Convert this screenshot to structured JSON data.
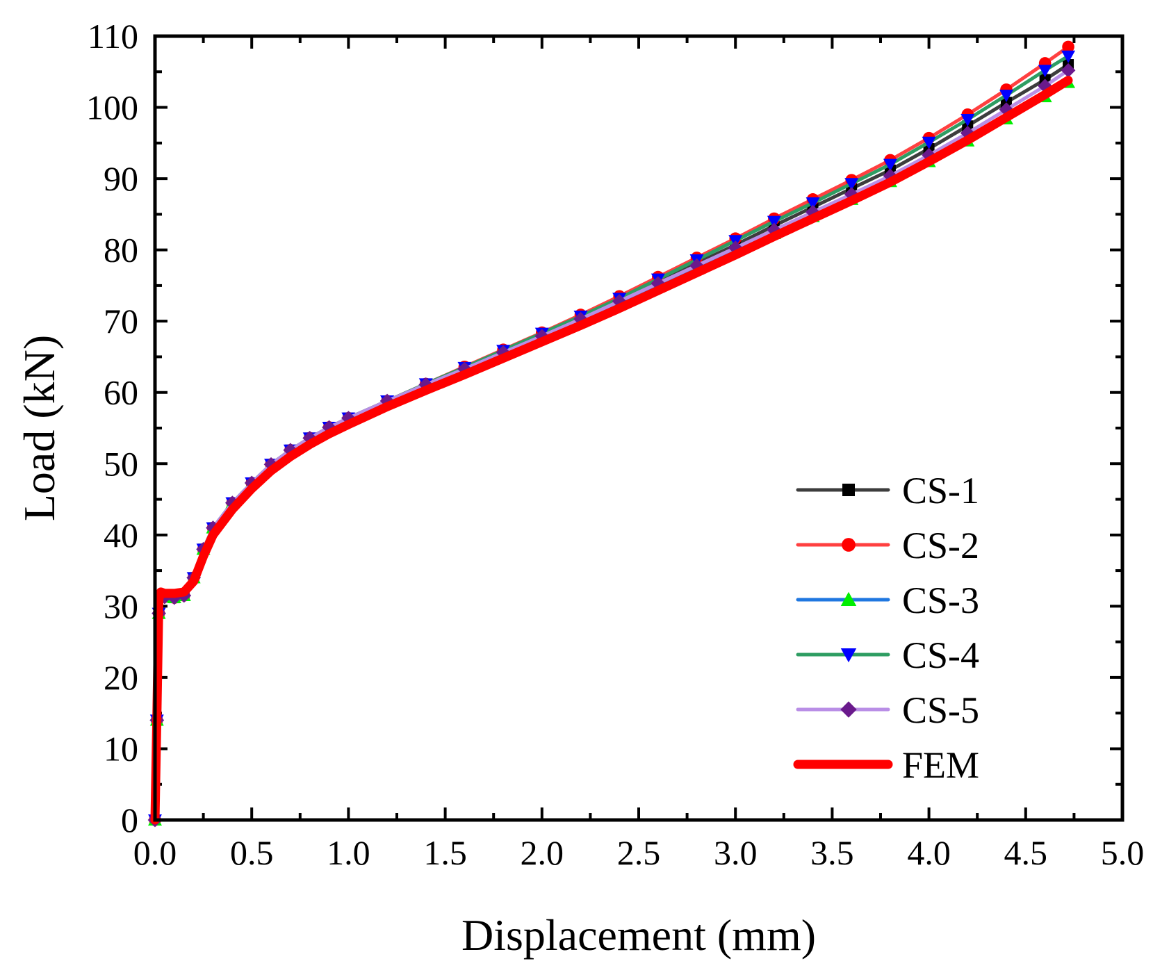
{
  "chart_data": {
    "type": "line",
    "title": "",
    "xlabel": "Displacement (mm)",
    "ylabel": "Load (kN)",
    "xlim": [
      0,
      5
    ],
    "ylim": [
      0,
      110
    ],
    "xticks": [
      0,
      0.5,
      1,
      1.5,
      2,
      2.5,
      3,
      3.5,
      4,
      4.5,
      5
    ],
    "xtick_labels": [
      "0.0",
      "0.5",
      "1.0",
      "1.5",
      "2.0",
      "2.5",
      "3.0",
      "3.5",
      "4.0",
      "4.5",
      "5.0"
    ],
    "yticks": [
      0,
      10,
      20,
      30,
      40,
      50,
      60,
      70,
      80,
      90,
      100,
      110
    ],
    "ytick_labels": [
      "0",
      "10",
      "20",
      "30",
      "40",
      "50",
      "60",
      "70",
      "80",
      "90",
      "100",
      "110"
    ],
    "grid": false,
    "legend_position": "bottom-right",
    "series": [
      {
        "name": "CS-1",
        "color": "#3d3d3d",
        "marker_color": "#000000",
        "marker": "square",
        "line_width": 5,
        "x": [
          0,
          0.01,
          0.02,
          0.03,
          0.05,
          0.1,
          0.15,
          0.2,
          0.25,
          0.3,
          0.4,
          0.5,
          0.6,
          0.7,
          0.8,
          0.9,
          1.0,
          1.2,
          1.4,
          1.6,
          1.8,
          2.0,
          2.2,
          2.4,
          2.6,
          2.8,
          3.0,
          3.2,
          3.4,
          3.6,
          3.8,
          4.0,
          4.2,
          4.4,
          4.6,
          4.72
        ],
        "y": [
          0,
          14,
          29,
          31.5,
          31.3,
          31.2,
          31.5,
          34,
          38,
          41,
          44.5,
          47.3,
          49.9,
          51.9,
          53.6,
          55.1,
          56.4,
          58.8,
          61.1,
          63.4,
          65.7,
          68,
          70.4,
          72.9,
          75.5,
          78.1,
          80.7,
          83.4,
          86,
          88.6,
          91.2,
          94.2,
          97.4,
          100.7,
          103.9,
          106
        ]
      },
      {
        "name": "CS-2",
        "color": "#ff4040",
        "marker_color": "#ff0000",
        "marker": "circle",
        "line_width": 5,
        "x": [
          0,
          0.01,
          0.02,
          0.03,
          0.05,
          0.1,
          0.15,
          0.2,
          0.25,
          0.3,
          0.4,
          0.5,
          0.6,
          0.7,
          0.8,
          0.9,
          1.0,
          1.2,
          1.4,
          1.6,
          1.8,
          2.0,
          2.2,
          2.4,
          2.6,
          2.8,
          3.0,
          3.2,
          3.4,
          3.6,
          3.8,
          4.0,
          4.2,
          4.4,
          4.6,
          4.72
        ],
        "y": [
          0,
          14,
          29,
          31.5,
          31.3,
          31.2,
          31.5,
          34,
          38,
          41,
          44.5,
          47.3,
          49.9,
          51.9,
          53.6,
          55.1,
          56.4,
          58.8,
          61.2,
          63.6,
          66,
          68.4,
          70.9,
          73.5,
          76.2,
          78.9,
          81.6,
          84.4,
          87.1,
          89.8,
          92.6,
          95.7,
          99,
          102.5,
          106.2,
          108.5
        ]
      },
      {
        "name": "CS-3",
        "color": "#1f77e0",
        "marker_color": "#00ee00",
        "marker": "triangle-up",
        "line_width": 5,
        "x": [
          0,
          0.01,
          0.02,
          0.03,
          0.05,
          0.1,
          0.15,
          0.2,
          0.25,
          0.3,
          0.4,
          0.5,
          0.6,
          0.7,
          0.8,
          0.9,
          1.0,
          1.2,
          1.4,
          1.6,
          1.8,
          2.0,
          2.2,
          2.4,
          2.6,
          2.8,
          3.0,
          3.2,
          3.4,
          3.6,
          3.8,
          4.0,
          4.2,
          4.4,
          4.6,
          4.72
        ],
        "y": [
          0,
          14,
          29,
          31.5,
          31.3,
          31.2,
          31.5,
          34,
          38,
          41,
          44.5,
          47.3,
          49.9,
          51.9,
          53.6,
          55.1,
          56.4,
          58.8,
          61,
          63.2,
          65.4,
          67.6,
          69.9,
          72.3,
          74.8,
          77.3,
          79.8,
          82.3,
          84.7,
          87.1,
          89.6,
          92.4,
          95.3,
          98.4,
          101.5,
          103.5
        ]
      },
      {
        "name": "CS-4",
        "color": "#2e9d62",
        "marker_color": "#0000ff",
        "marker": "triangle-down",
        "line_width": 5,
        "x": [
          0,
          0.01,
          0.02,
          0.03,
          0.05,
          0.1,
          0.15,
          0.2,
          0.25,
          0.3,
          0.4,
          0.5,
          0.6,
          0.7,
          0.8,
          0.9,
          1.0,
          1.2,
          1.4,
          1.6,
          1.8,
          2.0,
          2.2,
          2.4,
          2.6,
          2.8,
          3.0,
          3.2,
          3.4,
          3.6,
          3.8,
          4.0,
          4.2,
          4.4,
          4.6,
          4.72
        ],
        "y": [
          0,
          14,
          29,
          31.5,
          31.3,
          31.2,
          31.5,
          34,
          38,
          41,
          44.5,
          47.3,
          49.9,
          51.9,
          53.6,
          55.1,
          56.4,
          58.8,
          61.2,
          63.5,
          65.9,
          68.3,
          70.7,
          73.2,
          75.9,
          78.6,
          81.3,
          84,
          86.6,
          89.3,
          92,
          95.1,
          98.3,
          101.7,
          105.2,
          107.2
        ]
      },
      {
        "name": "CS-5",
        "color": "#b98ee6",
        "marker_color": "#6a1a8c",
        "marker": "diamond",
        "line_width": 5,
        "x": [
          0,
          0.01,
          0.02,
          0.03,
          0.05,
          0.1,
          0.15,
          0.2,
          0.25,
          0.3,
          0.4,
          0.5,
          0.6,
          0.7,
          0.8,
          0.9,
          1.0,
          1.2,
          1.4,
          1.6,
          1.8,
          2.0,
          2.2,
          2.4,
          2.6,
          2.8,
          3.0,
          3.2,
          3.4,
          3.6,
          3.8,
          4.0,
          4.2,
          4.4,
          4.6,
          4.72
        ],
        "y": [
          0,
          14,
          29,
          31.5,
          31.3,
          31.2,
          31.5,
          34,
          38,
          41,
          44.5,
          47.3,
          49.9,
          51.9,
          53.6,
          55.1,
          56.4,
          58.8,
          61.1,
          63.3,
          65.6,
          67.9,
          70.3,
          72.8,
          75.3,
          77.8,
          80.3,
          82.8,
          85.3,
          87.8,
          90.4,
          93.3,
          96.4,
          99.7,
          103,
          105.2
        ]
      },
      {
        "name": "FEM",
        "color": "#ff0000",
        "marker": "none",
        "line_width": 13,
        "x": [
          0,
          0.01,
          0.02,
          0.03,
          0.05,
          0.1,
          0.15,
          0.2,
          0.25,
          0.3,
          0.4,
          0.5,
          0.6,
          0.7,
          0.8,
          0.9,
          1.0,
          1.2,
          1.4,
          1.6,
          1.8,
          2.0,
          2.2,
          2.4,
          2.6,
          2.8,
          3.0,
          3.2,
          3.4,
          3.6,
          3.8,
          4.0,
          4.2,
          4.4,
          4.6,
          4.72
        ],
        "y": [
          0,
          15,
          31,
          32,
          31.8,
          31.8,
          32,
          33.5,
          37,
          40,
          43.6,
          46.5,
          49,
          51,
          52.7,
          54.2,
          55.5,
          58,
          60.3,
          62.5,
          64.8,
          67.1,
          69.4,
          71.8,
          74.3,
          76.8,
          79.3,
          81.9,
          84.4,
          86.9,
          89.5,
          92.4,
          95.4,
          98.6,
          101.8,
          103.8
        ]
      }
    ]
  }
}
